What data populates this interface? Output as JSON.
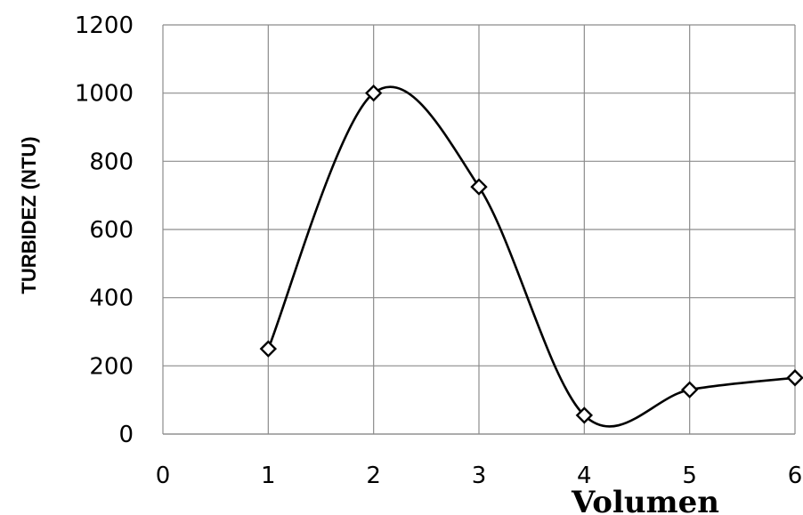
{
  "chart_data": {
    "type": "scatter",
    "title": "",
    "xlabel": "Volumen",
    "ylabel": "TURBIDEZ (NTU)",
    "xlim": [
      0,
      6
    ],
    "ylim": [
      0,
      1200
    ],
    "x_ticks": [
      "0",
      "1",
      "2",
      "3",
      "4",
      "5",
      "6"
    ],
    "y_ticks": [
      "0",
      "200",
      "400",
      "600",
      "800",
      "1000",
      "1200"
    ],
    "grid": true,
    "smooth_line": true,
    "marker": "diamond",
    "line_color": "#000000",
    "grid_color": "#8c8c8c",
    "series": [
      {
        "x": [
          1,
          2,
          3,
          4,
          5,
          6
        ],
        "y": [
          250,
          1000,
          725,
          55,
          130,
          165
        ]
      }
    ]
  }
}
